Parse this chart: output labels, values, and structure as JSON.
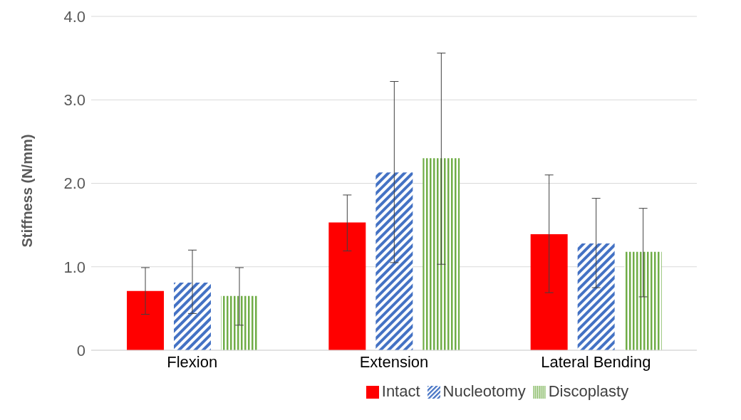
{
  "chart_data": {
    "type": "bar",
    "ylabel": "Stiffness (N/mm)",
    "categories": [
      "Flexion",
      "Extension",
      "Lateral Bending"
    ],
    "series": [
      {
        "name": "Intact",
        "color": "#ff0000",
        "values": [
          0.71,
          1.53,
          1.39
        ],
        "errors": [
          [
            0.43,
            0.99
          ],
          [
            1.19,
            1.86
          ],
          [
            0.69,
            2.1
          ]
        ]
      },
      {
        "name": "Nucleotomy",
        "color": "#4472c4",
        "values": [
          0.81,
          2.13,
          1.28
        ],
        "errors": [
          [
            0.44,
            1.2
          ],
          [
            1.05,
            3.22
          ],
          [
            0.75,
            1.82
          ]
        ]
      },
      {
        "name": "Discoplasty",
        "color": "#70ad47",
        "values": [
          0.65,
          2.3,
          1.18
        ],
        "errors": [
          [
            0.3,
            0.99
          ],
          [
            1.03,
            3.56
          ],
          [
            0.64,
            1.7
          ]
        ]
      }
    ],
    "ylim": [
      0,
      4
    ],
    "yticks": [
      0,
      {
        "value": 1,
        "label": "1.0"
      },
      {
        "value": 2,
        "label": "2.0"
      },
      {
        "value": 3,
        "label": "3.0"
      },
      {
        "value": 4,
        "label": "4.0"
      }
    ],
    "grid": "y",
    "legend": "bottom"
  }
}
